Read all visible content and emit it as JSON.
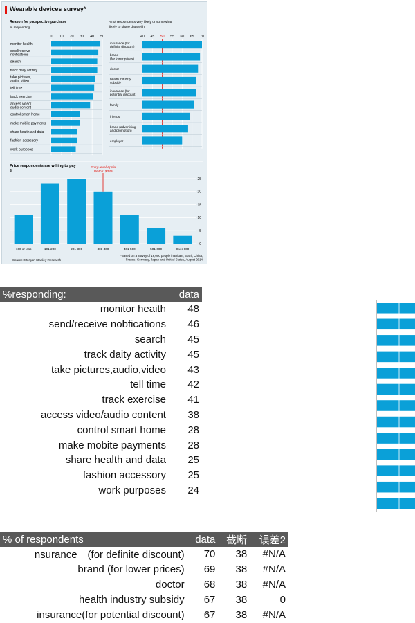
{
  "chart_data": [
    {
      "type": "bar",
      "orientation": "horizontal",
      "title": "Wearable devices survey*",
      "subtitle": "Reason for prospective purchase",
      "xlabel": "% responding",
      "xlim": [
        0,
        50
      ],
      "ticks": [
        "0",
        "10",
        "20",
        "30",
        "40",
        "50"
      ],
      "categories": [
        {
          "lines": [
            "monitor health"
          ],
          "value": 48
        },
        {
          "lines": [
            "send/receive",
            "notifications"
          ],
          "value": 46
        },
        {
          "lines": [
            "search"
          ],
          "value": 45
        },
        {
          "lines": [
            "track daily activity"
          ],
          "value": 45
        },
        {
          "lines": [
            "take pictures,",
            "audio, video"
          ],
          "value": 43
        },
        {
          "lines": [
            "tell time"
          ],
          "value": 42
        },
        {
          "lines": [
            "track exercise"
          ],
          "value": 41
        },
        {
          "lines": [
            "access video/",
            "audio content"
          ],
          "value": 38
        },
        {
          "lines": [
            "control smart home"
          ],
          "value": 28
        },
        {
          "lines": [
            "make mobile payments"
          ],
          "value": 28
        },
        {
          "lines": [
            "share health and data"
          ],
          "value": 25
        },
        {
          "lines": [
            "fashion accessory"
          ],
          "value": 25
        },
        {
          "lines": [
            "work purposes"
          ],
          "value": 24
        }
      ],
      "color": "#0aa0d8"
    },
    {
      "type": "bar",
      "orientation": "horizontal",
      "subtitle": "% of respondents very likely or somewhat likely to share data with:",
      "xlim": [
        40,
        70
      ],
      "ticks": [
        "40",
        "45",
        "50",
        "55",
        "60",
        "65",
        "70"
      ],
      "highlight_tick": "50",
      "categories": [
        {
          "lines": [
            "insurance (for",
            "definite discount)"
          ],
          "value": 70
        },
        {
          "lines": [
            "brand",
            "(for lower prices)"
          ],
          "value": 69
        },
        {
          "lines": [
            "doctor"
          ],
          "value": 68
        },
        {
          "lines": [
            "health industry",
            "subsidy"
          ],
          "value": 67
        },
        {
          "lines": [
            "insurance (for",
            "potential discount)"
          ],
          "value": 67
        },
        {
          "lines": [
            "family"
          ],
          "value": 66
        },
        {
          "lines": [
            "friends"
          ],
          "value": 64
        },
        {
          "lines": [
            "brand (advertising",
            "and promotion)"
          ],
          "value": 63
        },
        {
          "lines": [
            "employer"
          ],
          "value": 60
        }
      ],
      "color": "#0aa0d8"
    },
    {
      "type": "bar",
      "title": "Price respondents are willing to pay",
      "ylabel": "$",
      "ylim": [
        0,
        25
      ],
      "yticks": [
        "0",
        "5",
        "10",
        "15",
        "20",
        "25"
      ],
      "categories": [
        "100 or less",
        "101-200",
        "201-300",
        "301-400",
        "401-500",
        "501-600",
        "Over 600"
      ],
      "values": [
        11,
        23,
        25,
        20,
        11,
        6,
        3
      ],
      "annotation": {
        "lines": [
          "Entry-level Apple",
          "Watch: $349"
        ],
        "category": "301-400",
        "color": "#e3120b"
      },
      "source": "Source: Morgan Stanley Research",
      "footnote": [
        "*Based on a survey of 16,000 people in Britain, Brazil, China,",
        "France, Germany, Japan and United States, August 2014"
      ],
      "color": "#0aa0d8"
    }
  ],
  "table1": {
    "header": [
      "%responding:",
      "data"
    ],
    "rows": [
      [
        "monitor heaith",
        "48"
      ],
      [
        "send/receive nobfications",
        "46"
      ],
      [
        "search",
        "45"
      ],
      [
        "track daity activity",
        "45"
      ],
      [
        "take pictures,audio,video",
        "43"
      ],
      [
        "tell time",
        "42"
      ],
      [
        "track exercise",
        "41"
      ],
      [
        "access video/audio content",
        "38"
      ],
      [
        "control smart home",
        "28"
      ],
      [
        "make mobite payments",
        "28"
      ],
      [
        "share health and data",
        "25"
      ],
      [
        "fashion accessory",
        "25"
      ],
      [
        "work purposes",
        "24"
      ]
    ]
  },
  "table2": {
    "header": [
      "% of respondents",
      "data",
      "截断",
      "误差2"
    ],
    "rows": [
      [
        "nsurance　(for definite discount)",
        "70",
        "38",
        "#N/A"
      ],
      [
        "brand (for lower prices)",
        "69",
        "38",
        "#N/A"
      ],
      [
        "doctor",
        "68",
        "38",
        "#N/A"
      ],
      [
        "health industry subsidy",
        "67",
        "38",
        "0"
      ],
      [
        "insurance(for potential discount)",
        "67",
        "38",
        "#N/A"
      ]
    ]
  },
  "thumbnail_bars": {
    "count": 13,
    "color": "#0aa0d8"
  }
}
